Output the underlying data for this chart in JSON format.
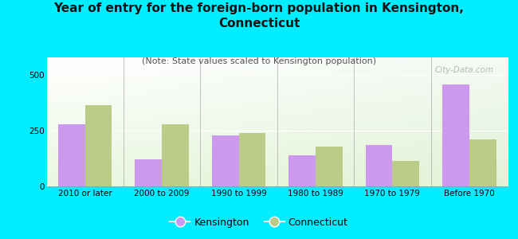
{
  "title": "Year of entry for the foreign-born population in Kensington,\nConnecticut",
  "subtitle": "(Note: State values scaled to Kensington population)",
  "categories": [
    "2010 or later",
    "2000 to 2009",
    "1990 to 1999",
    "1980 to 1989",
    "1970 to 1979",
    "Before 1970"
  ],
  "kensington_values": [
    280,
    120,
    230,
    140,
    185,
    460
  ],
  "connecticut_values": [
    365,
    280,
    240,
    180,
    115,
    210
  ],
  "kensington_color": "#cc99ee",
  "connecticut_color": "#bbcc88",
  "background_color": "#00eeff",
  "ylabel_ticks": [
    0,
    250,
    500
  ],
  "bar_width": 0.35,
  "title_fontsize": 11,
  "subtitle_fontsize": 8,
  "tick_fontsize": 7.5,
  "legend_fontsize": 9,
  "watermark": "City-Data.com"
}
